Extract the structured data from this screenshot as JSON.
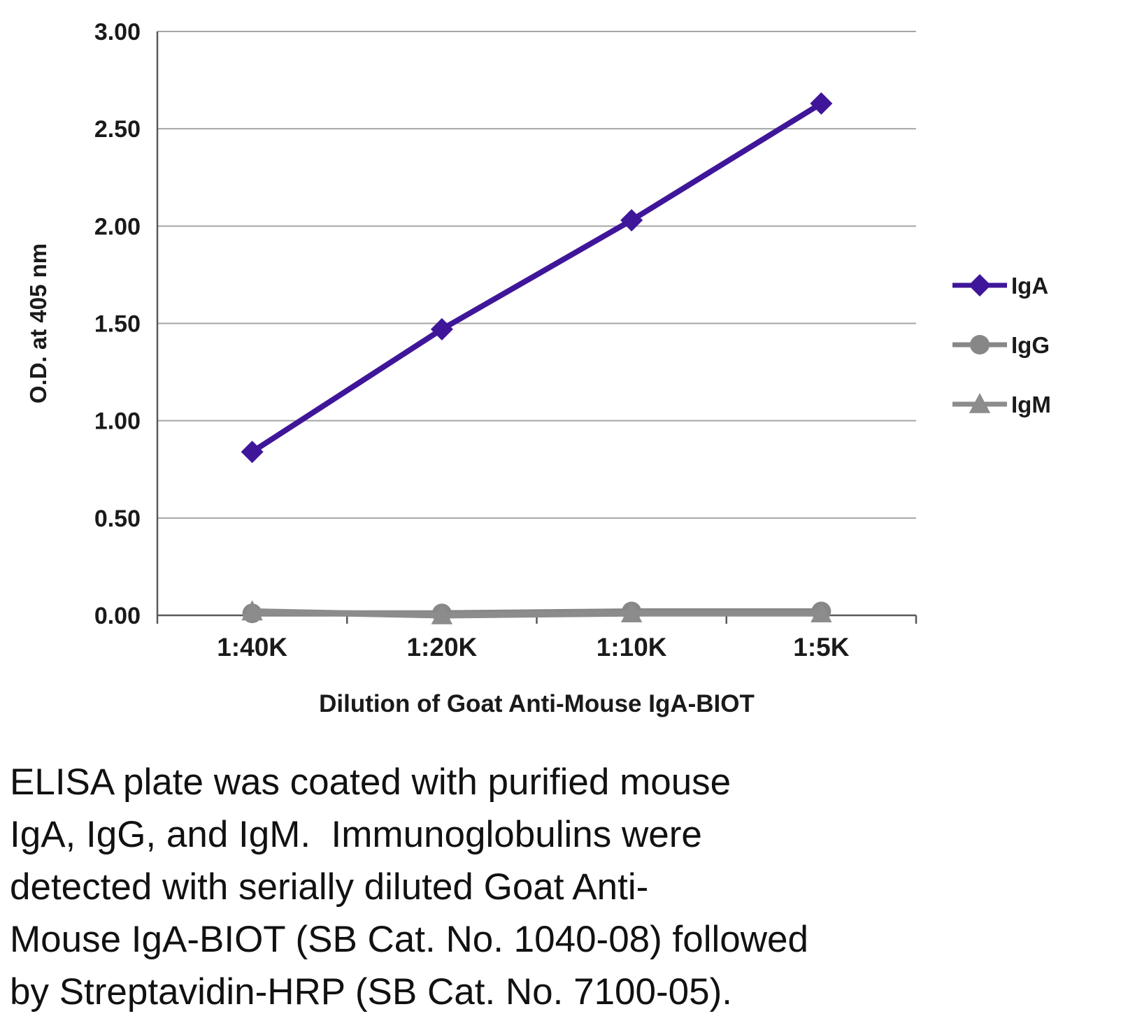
{
  "chart_data": {
    "type": "line",
    "title": "",
    "xlabel": "Dilution of Goat Anti-Mouse IgA-BIOT",
    "ylabel": "O.D. at 405 nm",
    "categories": [
      "1:40K",
      "1:20K",
      "1:10K",
      "1:5K"
    ],
    "ylim": [
      0,
      3.0
    ],
    "yticks": [
      "0.00",
      "0.50",
      "1.00",
      "1.50",
      "2.00",
      "2.50",
      "3.00"
    ],
    "grid": true,
    "legend_position": "right",
    "series": [
      {
        "name": "IgA",
        "color": "#3f1699",
        "marker": "diamond",
        "width": 8,
        "values": [
          0.84,
          1.47,
          2.03,
          2.63
        ]
      },
      {
        "name": "IgG",
        "color": "#878787",
        "marker": "circle",
        "width": 9,
        "values": [
          0.01,
          0.01,
          0.02,
          0.02
        ]
      },
      {
        "name": "IgM",
        "color": "#8c8c8c",
        "marker": "triangle",
        "width": 9,
        "values": [
          0.02,
          0.0,
          0.01,
          0.01
        ]
      }
    ],
    "colors": {
      "grid": "#a6a6a6",
      "axis": "#595959",
      "text": "#1a1a1a"
    }
  },
  "caption": {
    "lines": [
      "ELISA plate was coated with purified mouse",
      "IgA, IgG, and IgM.  Immunoglobulins were",
      "detected with serially diluted Goat Anti-",
      "Mouse IgA-BIOT (SB Cat. No. 1040-08) followed",
      "by Streptavidin-HRP (SB Cat. No. 7100-05)."
    ]
  }
}
